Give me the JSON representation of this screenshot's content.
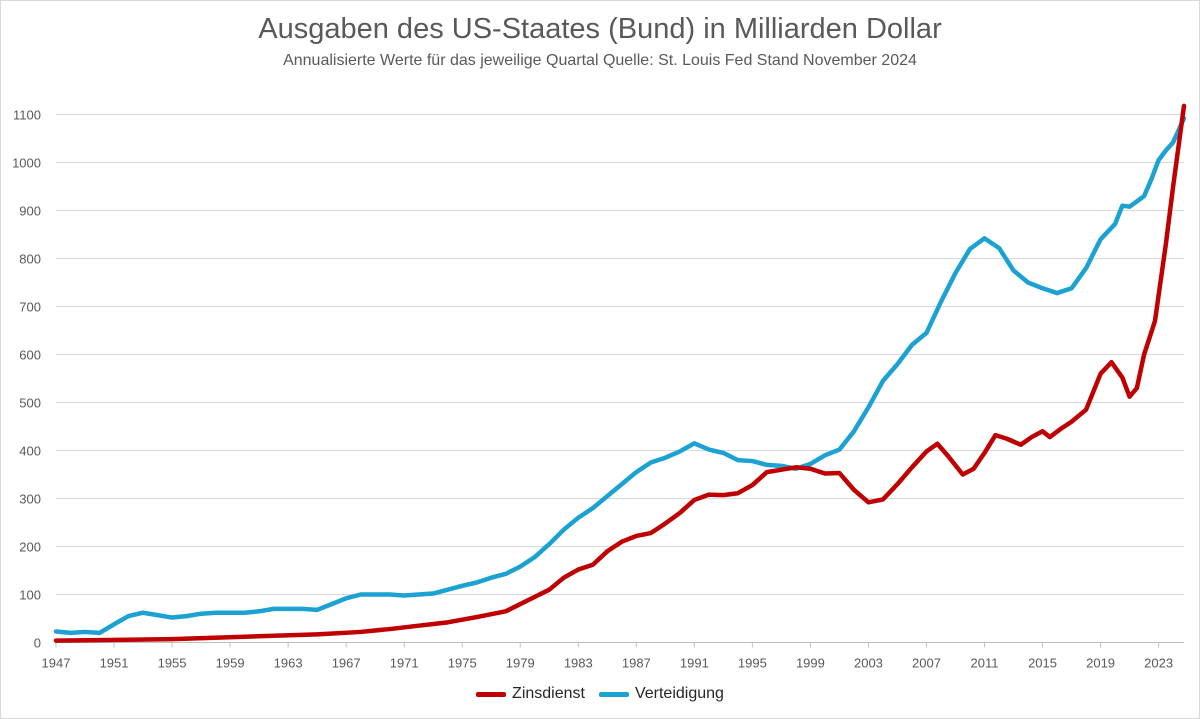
{
  "chart_data": {
    "type": "line",
    "title": "Ausgaben des US-Staates (Bund) in Milliarden Dollar",
    "subtitle": "Annualisierte Werte für das jeweilige Quartal Quelle: St. Louis Fed Stand November 2024",
    "xlabel": "",
    "ylabel": "",
    "xlim": [
      1947,
      2024.75
    ],
    "ylim": [
      0,
      1100
    ],
    "x_ticks": [
      "1947",
      "1951",
      "1955",
      "1959",
      "1963",
      "1967",
      "1971",
      "1975",
      "1979",
      "1983",
      "1987",
      "1991",
      "1995",
      "1999",
      "2003",
      "2007",
      "2011",
      "2015",
      "2019",
      "2023"
    ],
    "y_ticks": [
      "0",
      "100",
      "200",
      "300",
      "400",
      "500",
      "600",
      "700",
      "800",
      "900",
      "1000",
      "1100"
    ],
    "grid": "horizontal",
    "legend_position": "bottom",
    "series": [
      {
        "name": "Zinsdienst",
        "color": "#c00000",
        "points": [
          [
            1947,
            4
          ],
          [
            1950,
            5
          ],
          [
            1955,
            7
          ],
          [
            1960,
            12
          ],
          [
            1965,
            17
          ],
          [
            1968,
            22
          ],
          [
            1970,
            28
          ],
          [
            1972,
            35
          ],
          [
            1974,
            42
          ],
          [
            1976,
            53
          ],
          [
            1978,
            65
          ],
          [
            1980,
            95
          ],
          [
            1981,
            110
          ],
          [
            1982,
            135
          ],
          [
            1983,
            152
          ],
          [
            1984,
            162
          ],
          [
            1985,
            190
          ],
          [
            1986,
            210
          ],
          [
            1987,
            222
          ],
          [
            1988,
            228
          ],
          [
            1989,
            248
          ],
          [
            1990,
            270
          ],
          [
            1991,
            297
          ],
          [
            1992,
            308
          ],
          [
            1993,
            307
          ],
          [
            1994,
            311
          ],
          [
            1995,
            328
          ],
          [
            1996,
            355
          ],
          [
            1997,
            360
          ],
          [
            1998,
            365
          ],
          [
            1999,
            362
          ],
          [
            2000,
            352
          ],
          [
            2001,
            353
          ],
          [
            2002,
            318
          ],
          [
            2003,
            292
          ],
          [
            2004,
            298
          ],
          [
            2005,
            330
          ],
          [
            2006,
            365
          ],
          [
            2007,
            398
          ],
          [
            2007.75,
            414
          ],
          [
            2008.5,
            388
          ],
          [
            2009.5,
            350
          ],
          [
            2010.25,
            362
          ],
          [
            2011,
            395
          ],
          [
            2011.75,
            432
          ],
          [
            2012.5,
            425
          ],
          [
            2013.5,
            412
          ],
          [
            2014.25,
            428
          ],
          [
            2015,
            440
          ],
          [
            2015.5,
            428
          ],
          [
            2016.25,
            445
          ],
          [
            2017,
            460
          ],
          [
            2018,
            485
          ],
          [
            2019,
            560
          ],
          [
            2019.75,
            584
          ],
          [
            2020.5,
            552
          ],
          [
            2021,
            512
          ],
          [
            2021.5,
            530
          ],
          [
            2022,
            600
          ],
          [
            2022.75,
            670
          ],
          [
            2023.5,
            830
          ],
          [
            2024,
            950
          ],
          [
            2024.75,
            1118
          ]
        ]
      },
      {
        "name": "Verteidigung",
        "color": "#1ba1d2",
        "points": [
          [
            1947,
            23
          ],
          [
            1948,
            20
          ],
          [
            1949,
            22
          ],
          [
            1950,
            20
          ],
          [
            1951,
            38
          ],
          [
            1952,
            55
          ],
          [
            1953,
            62
          ],
          [
            1954,
            57
          ],
          [
            1955,
            52
          ],
          [
            1956,
            55
          ],
          [
            1957,
            60
          ],
          [
            1958,
            62
          ],
          [
            1959,
            62
          ],
          [
            1960,
            62
          ],
          [
            1961,
            65
          ],
          [
            1962,
            70
          ],
          [
            1963,
            70
          ],
          [
            1964,
            70
          ],
          [
            1965,
            68
          ],
          [
            1966,
            80
          ],
          [
            1967,
            92
          ],
          [
            1968,
            100
          ],
          [
            1969,
            100
          ],
          [
            1970,
            100
          ],
          [
            1971,
            98
          ],
          [
            1972,
            100
          ],
          [
            1973,
            102
          ],
          [
            1974,
            110
          ],
          [
            1975,
            118
          ],
          [
            1976,
            125
          ],
          [
            1977,
            135
          ],
          [
            1978,
            143
          ],
          [
            1979,
            158
          ],
          [
            1980,
            178
          ],
          [
            1981,
            205
          ],
          [
            1982,
            235
          ],
          [
            1983,
            260
          ],
          [
            1984,
            280
          ],
          [
            1985,
            305
          ],
          [
            1986,
            330
          ],
          [
            1987,
            355
          ],
          [
            1988,
            375
          ],
          [
            1989,
            385
          ],
          [
            1990,
            398
          ],
          [
            1991,
            415
          ],
          [
            1992,
            402
          ],
          [
            1993,
            395
          ],
          [
            1994,
            380
          ],
          [
            1995,
            378
          ],
          [
            1996,
            370
          ],
          [
            1997,
            368
          ],
          [
            1998,
            362
          ],
          [
            1999,
            372
          ],
          [
            2000,
            390
          ],
          [
            2001,
            402
          ],
          [
            2002,
            440
          ],
          [
            2003,
            490
          ],
          [
            2004,
            545
          ],
          [
            2005,
            580
          ],
          [
            2006,
            620
          ],
          [
            2007,
            645
          ],
          [
            2008,
            710
          ],
          [
            2009,
            770
          ],
          [
            2010,
            820
          ],
          [
            2011,
            842
          ],
          [
            2012,
            822
          ],
          [
            2013,
            775
          ],
          [
            2014,
            750
          ],
          [
            2015,
            738
          ],
          [
            2016,
            728
          ],
          [
            2017,
            738
          ],
          [
            2018,
            780
          ],
          [
            2019,
            840
          ],
          [
            2020,
            872
          ],
          [
            2020.5,
            910
          ],
          [
            2021,
            908
          ],
          [
            2022,
            930
          ],
          [
            2022.5,
            965
          ],
          [
            2023,
            1005
          ],
          [
            2023.5,
            1025
          ],
          [
            2024,
            1042
          ],
          [
            2024.75,
            1092
          ]
        ]
      }
    ]
  }
}
